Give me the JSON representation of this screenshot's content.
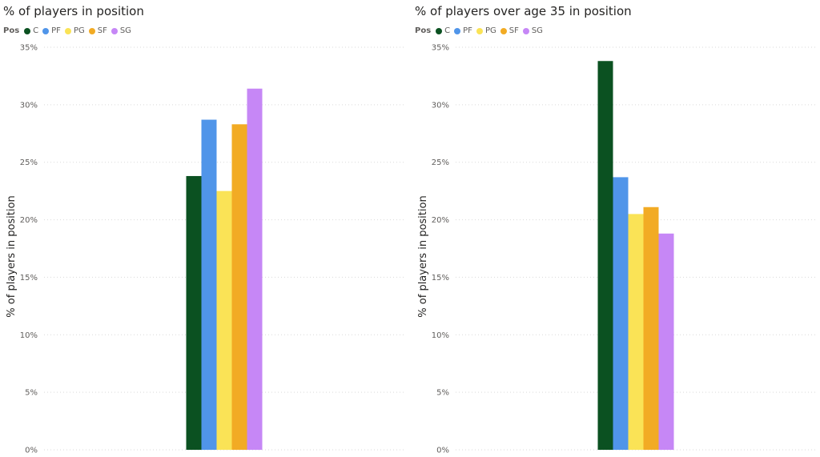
{
  "legend_title": "Pos",
  "chart_data": [
    {
      "type": "bar",
      "title": "% of players in position",
      "ylabel": "% of players in position",
      "xlabel": "",
      "ylim": [
        0,
        35
      ],
      "yticks": [
        "0%",
        "5%",
        "10%",
        "15%",
        "20%",
        "25%",
        "30%",
        "35%"
      ],
      "ytick_values": [
        0,
        5,
        10,
        15,
        20,
        25,
        30,
        35
      ],
      "grid": true,
      "legend_position": "top-left",
      "series": [
        {
          "name": "C",
          "value": 23.8,
          "color": "#0b5121"
        },
        {
          "name": "PF",
          "value": 28.7,
          "color": "#5095e9"
        },
        {
          "name": "PG",
          "value": 22.5,
          "color": "#fae356"
        },
        {
          "name": "SF",
          "value": 28.3,
          "color": "#f2ab24"
        },
        {
          "name": "SG",
          "value": 31.4,
          "color": "#c687f6"
        }
      ]
    },
    {
      "type": "bar",
      "title": "% of players over age 35 in position",
      "ylabel": "% of players in position",
      "xlabel": "",
      "ylim": [
        0,
        35
      ],
      "yticks": [
        "0%",
        "5%",
        "10%",
        "15%",
        "20%",
        "25%",
        "30%",
        "35%"
      ],
      "ytick_values": [
        0,
        5,
        10,
        15,
        20,
        25,
        30,
        35
      ],
      "grid": true,
      "legend_position": "top-left",
      "series": [
        {
          "name": "C",
          "value": 33.8,
          "color": "#0b5121"
        },
        {
          "name": "PF",
          "value": 23.7,
          "color": "#5095e9"
        },
        {
          "name": "PG",
          "value": 20.5,
          "color": "#fae356"
        },
        {
          "name": "SF",
          "value": 21.1,
          "color": "#f2ab24"
        },
        {
          "name": "SG",
          "value": 18.8,
          "color": "#c687f6"
        }
      ]
    }
  ]
}
